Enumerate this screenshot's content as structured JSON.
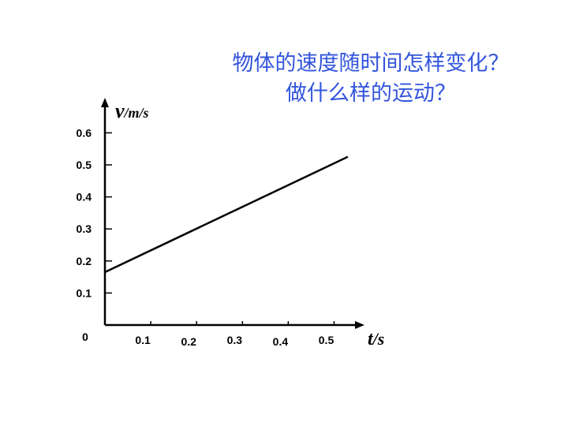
{
  "question": {
    "line1": "物体的速度随时间怎样变化？",
    "line2": "做什么样的运动？"
  },
  "chart_data": {
    "type": "line",
    "ylabel": {
      "symbol": "v",
      "unit": "/m/s"
    },
    "xlabel": {
      "symbol": "t",
      "unit": "/s"
    },
    "origin_label": "0",
    "xlim": [
      0,
      0.55
    ],
    "ylim": [
      0,
      0.65
    ],
    "xticks": [
      {
        "value": 0.1,
        "label": "0.1"
      },
      {
        "value": 0.2,
        "label": "0.2"
      },
      {
        "value": 0.3,
        "label": "0.3"
      },
      {
        "value": 0.4,
        "label": "0.4"
      },
      {
        "value": 0.5,
        "label": "0.5"
      }
    ],
    "yticks": [
      {
        "value": 0.1,
        "label": "0.1"
      },
      {
        "value": 0.2,
        "label": "0.2"
      },
      {
        "value": 0.3,
        "label": "0.3"
      },
      {
        "value": 0.4,
        "label": "0.4"
      },
      {
        "value": 0.5,
        "label": "0.5"
      },
      {
        "value": 0.6,
        "label": "0.6"
      }
    ],
    "series": [
      {
        "x": [
          0,
          0.53
        ],
        "y": [
          0.165,
          0.525
        ]
      }
    ],
    "grid": false
  }
}
